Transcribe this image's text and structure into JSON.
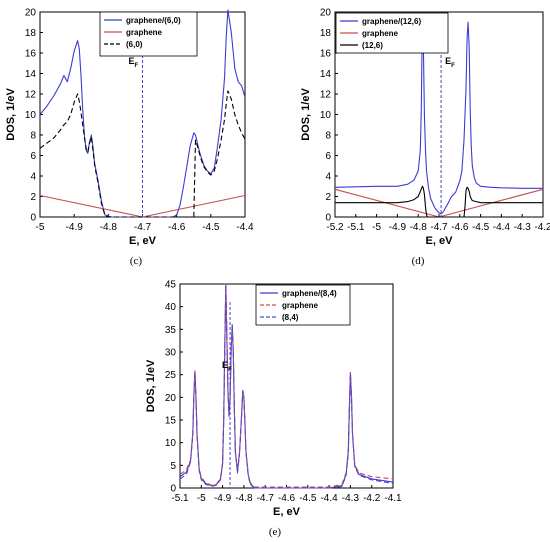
{
  "colors": {
    "composite": "#3b3bd6",
    "graphene": "#c0504d",
    "tube_black": "#000000",
    "tube_dashed_blue": "#4a4ae0",
    "fermi": "#4444dd"
  },
  "panels": [
    {
      "label": "(c)"
    },
    {
      "label": "(d)"
    },
    {
      "label": "(e)"
    }
  ],
  "chart_data": [
    {
      "type": "line",
      "panel": "(c)",
      "xlabel": "E, eV",
      "ylabel": "DOS, 1/eV",
      "xlim": [
        -5,
        -4.4
      ],
      "ylim": [
        0,
        20
      ],
      "xticks": [
        "-5",
        "-4.9",
        "-4.8",
        "-4.7",
        "-4.6",
        "-4.5",
        "-4.4"
      ],
      "yticks": [
        "0",
        "2",
        "4",
        "6",
        "8",
        "10",
        "12",
        "14",
        "16",
        "18",
        "20"
      ],
      "fermi_label": "E",
      "fermi_sub": "F",
      "fermi_x": -4.7,
      "legend": [
        "graphene/(6,0)",
        "graphene",
        "(6,0)"
      ],
      "series": [
        {
          "name": "graphene/(6,0)",
          "style": "solid",
          "color": "composite",
          "x": [
            -5.0,
            -4.98,
            -4.96,
            -4.94,
            -4.93,
            -4.92,
            -4.91,
            -4.9,
            -4.89,
            -4.885,
            -4.88,
            -4.875,
            -4.87,
            -4.865,
            -4.86,
            -4.855,
            -4.85,
            -4.845,
            -4.84,
            -4.83,
            -4.82,
            -4.81,
            -4.8,
            -4.79,
            -4.78,
            -4.7,
            -4.62,
            -4.61,
            -4.6,
            -4.59,
            -4.58,
            -4.57,
            -4.56,
            -4.55,
            -4.545,
            -4.54,
            -4.535,
            -4.53,
            -4.525,
            -4.52,
            -4.51,
            -4.5,
            -4.49,
            -4.48,
            -4.47,
            -4.46,
            -4.455,
            -4.45,
            -4.44,
            -4.43,
            -4.42,
            -4.41,
            -4.4
          ],
          "y": [
            10.0,
            10.8,
            11.8,
            13.0,
            13.8,
            13.2,
            14.5,
            16.2,
            17.2,
            16.4,
            13.8,
            10.5,
            8.0,
            6.5,
            6.2,
            7.3,
            8.0,
            6.8,
            5.2,
            3.5,
            1.5,
            0.2,
            0.1,
            0.0,
            0.0,
            0.0,
            0.0,
            0.0,
            0.2,
            1.2,
            3.0,
            5.0,
            7.0,
            8.2,
            8.0,
            7.3,
            6.6,
            6.0,
            5.5,
            5.0,
            4.5,
            4.2,
            4.8,
            7.0,
            9.5,
            13.5,
            17.5,
            20.2,
            18.0,
            14.5,
            13.2,
            12.8,
            11.7
          ]
        },
        {
          "name": "graphene",
          "style": "solid",
          "color": "graphene",
          "x": [
            -5.0,
            -4.7,
            -4.4
          ],
          "y": [
            2.1,
            0.0,
            2.1
          ]
        },
        {
          "name": "(6,0)",
          "style": "dashed",
          "color": "tube_black",
          "x": [
            -5.0,
            -4.98,
            -4.96,
            -4.94,
            -4.93,
            -4.92,
            -4.91,
            -4.9,
            -4.89,
            -4.885,
            -4.88,
            -4.875,
            -4.87,
            -4.865,
            -4.86,
            -4.855,
            -4.85,
            -4.845,
            -4.84,
            -4.83,
            -4.82,
            -4.81,
            -4.8,
            -4.79,
            -4.55,
            -4.545,
            -4.54,
            -4.535,
            -4.53,
            -4.525,
            -4.52,
            -4.51,
            -4.5,
            -4.49,
            -4.48,
            -4.47,
            -4.46,
            -4.455,
            -4.45,
            -4.44,
            -4.43,
            -4.42,
            -4.41,
            -4.4
          ],
          "y": [
            6.7,
            7.2,
            7.7,
            8.5,
            9.0,
            9.3,
            10.0,
            11.2,
            12.0,
            11.3,
            10.2,
            9.0,
            7.8,
            6.7,
            6.3,
            7.2,
            7.8,
            6.5,
            5.0,
            3.3,
            1.3,
            0.2,
            0.0,
            0.0,
            0.0,
            7.5,
            7.0,
            6.4,
            5.8,
            5.3,
            4.9,
            4.4,
            4.1,
            4.5,
            5.8,
            7.5,
            9.5,
            11.0,
            12.3,
            11.5,
            10.0,
            9.0,
            8.2,
            7.6
          ]
        }
      ]
    },
    {
      "type": "line",
      "panel": "(d)",
      "xlabel": "E, eV",
      "ylabel": "DOS, 1/eV",
      "xlim": [
        -5.2,
        -4.2
      ],
      "ylim": [
        0,
        20
      ],
      "xticks": [
        "-5.2",
        "-5.1",
        "-5",
        "-4.9",
        "-4.8",
        "-4.7",
        "-4.6",
        "-4.5",
        "-4.4",
        "-4.3",
        "-4.2"
      ],
      "yticks": [
        "0",
        "2",
        "4",
        "6",
        "8",
        "10",
        "12",
        "14",
        "16",
        "18",
        "20"
      ],
      "fermi_label": "E",
      "fermi_sub": "F",
      "fermi_x": -4.69,
      "legend": [
        "graphene/(12,6)",
        "graphene",
        "(12,6)"
      ],
      "series": [
        {
          "name": "graphene/(12,6)",
          "style": "solid",
          "color": "composite",
          "x": [
            -5.2,
            -5.0,
            -4.9,
            -4.85,
            -4.82,
            -4.8,
            -4.79,
            -4.785,
            -4.78,
            -4.775,
            -4.77,
            -4.765,
            -4.76,
            -4.75,
            -4.74,
            -4.72,
            -4.7,
            -4.69,
            -4.68,
            -4.66,
            -4.64,
            -4.62,
            -4.6,
            -4.59,
            -4.58,
            -4.57,
            -4.565,
            -4.56,
            -4.555,
            -4.55,
            -4.545,
            -4.54,
            -4.53,
            -4.52,
            -4.5,
            -4.45,
            -4.4,
            -4.3,
            -4.2
          ],
          "y": [
            2.9,
            3.0,
            3.0,
            3.2,
            3.6,
            4.5,
            6.5,
            10.5,
            19.7,
            16.5,
            10.0,
            6.5,
            4.5,
            2.8,
            1.8,
            0.9,
            0.4,
            0.3,
            0.5,
            1.2,
            2.0,
            2.4,
            3.5,
            4.5,
            7.5,
            12.5,
            17.5,
            19.0,
            16.5,
            10.5,
            7.0,
            5.0,
            3.8,
            3.3,
            3.0,
            2.9,
            2.85,
            2.8,
            2.8
          ]
        },
        {
          "name": "graphene",
          "style": "solid",
          "color": "graphene",
          "x": [
            -5.2,
            -4.7,
            -4.2
          ],
          "y": [
            2.7,
            0.0,
            2.7
          ]
        },
        {
          "name": "(12,6)",
          "style": "solid",
          "color": "tube_black",
          "x": [
            -5.2,
            -4.9,
            -4.85,
            -4.82,
            -4.8,
            -4.79,
            -4.78,
            -4.775,
            -4.77,
            -4.765,
            -4.76,
            -4.755,
            -4.75,
            -4.6,
            -4.58,
            -4.575,
            -4.57,
            -4.565,
            -4.56,
            -4.555,
            -4.55,
            -4.545,
            -4.54,
            -4.52,
            -4.5,
            -4.2
          ],
          "y": [
            1.4,
            1.4,
            1.5,
            1.7,
            2.0,
            2.5,
            3.0,
            2.8,
            2.2,
            1.0,
            0.2,
            0.0,
            0.0,
            0.0,
            0.0,
            1.0,
            2.6,
            2.9,
            2.8,
            2.5,
            2.0,
            1.8,
            1.6,
            1.5,
            1.4,
            1.4
          ]
        }
      ]
    },
    {
      "type": "line",
      "panel": "(e)",
      "xlabel": "E, eV",
      "ylabel": "DOS, 1/eV",
      "xlim": [
        -5.1,
        -4.1
      ],
      "ylim": [
        0,
        45
      ],
      "xticks": [
        "-5.1",
        "-5",
        "-4.9",
        "-4.8",
        "-4.7",
        "-4.6",
        "-4.5",
        "-4.4",
        "-4.3",
        "-4.2",
        "-4.1"
      ],
      "yticks": [
        "0",
        "5",
        "10",
        "15",
        "20",
        "25",
        "30",
        "35",
        "40",
        "45"
      ],
      "fermi_label": "E",
      "fermi_sub": "F",
      "fermi_x": -4.865,
      "legend": [
        "graphene/(8,4)",
        "graphene",
        "(8,4)"
      ],
      "series": [
        {
          "name": "graphene/(8,4)",
          "style": "solid",
          "color": "composite",
          "x": [
            -5.1,
            -5.07,
            -5.05,
            -5.04,
            -5.035,
            -5.03,
            -5.025,
            -5.02,
            -5.01,
            -5.0,
            -4.98,
            -4.95,
            -4.93,
            -4.91,
            -4.9,
            -4.895,
            -4.89,
            -4.885,
            -4.88,
            -4.875,
            -4.87,
            -4.865,
            -4.86,
            -4.855,
            -4.85,
            -4.845,
            -4.84,
            -4.83,
            -4.82,
            -4.81,
            -4.805,
            -4.8,
            -4.795,
            -4.79,
            -4.78,
            -4.77,
            -4.75,
            -4.6,
            -4.4,
            -4.34,
            -4.32,
            -4.31,
            -4.305,
            -4.3,
            -4.295,
            -4.29,
            -4.28,
            -4.26,
            -4.2,
            -4.1
          ],
          "y": [
            2.5,
            3.5,
            6.0,
            12.0,
            20.0,
            25.8,
            20.0,
            12.0,
            4.0,
            2.0,
            1.0,
            0.5,
            0.7,
            2.0,
            5.5,
            15.0,
            30.0,
            45.0,
            33.0,
            22.0,
            16.0,
            20.0,
            30.0,
            36.0,
            30.0,
            18.0,
            8.0,
            3.5,
            8.0,
            17.0,
            21.5,
            20.0,
            14.0,
            8.0,
            3.0,
            1.0,
            0.0,
            0.0,
            0.0,
            0.5,
            3.0,
            8.0,
            17.0,
            25.5,
            20.0,
            12.0,
            5.0,
            3.0,
            2.0,
            1.3
          ]
        },
        {
          "name": "graphene",
          "style": "dashed",
          "color": "graphene",
          "x": [
            -5.1,
            -5.07,
            -5.05,
            -5.04,
            -5.035,
            -5.03,
            -5.025,
            -5.02,
            -5.01,
            -5.0,
            -4.98,
            -4.95,
            -4.93,
            -4.91,
            -4.9,
            -4.895,
            -4.89,
            -4.885,
            -4.88,
            -4.875,
            -4.87,
            -4.865,
            -4.86,
            -4.855,
            -4.85,
            -4.845,
            -4.84,
            -4.83,
            -4.82,
            -4.81,
            -4.805,
            -4.8,
            -4.795,
            -4.79,
            -4.78,
            -4.77,
            -4.75,
            -4.6,
            -4.4,
            -4.34,
            -4.32,
            -4.31,
            -4.305,
            -4.3,
            -4.295,
            -4.29,
            -4.28,
            -4.26,
            -4.2,
            -4.1
          ],
          "y": [
            3.0,
            4.0,
            6.3,
            12.2,
            20.2,
            25.8,
            20.2,
            12.2,
            4.3,
            2.3,
            1.2,
            0.6,
            0.8,
            2.2,
            5.8,
            15.3,
            30.0,
            45.0,
            33.0,
            22.0,
            16.0,
            20.0,
            30.0,
            36.0,
            30.0,
            18.0,
            8.0,
            3.5,
            8.0,
            17.0,
            21.5,
            20.0,
            14.0,
            8.0,
            3.0,
            1.2,
            0.2,
            0.2,
            0.2,
            0.8,
            3.3,
            8.3,
            17.3,
            25.5,
            20.3,
            12.3,
            5.3,
            3.3,
            2.5,
            2.0
          ]
        },
        {
          "name": "(8,4)",
          "style": "dashed",
          "color": "tube_dashed_blue",
          "x": [
            -5.1,
            -5.07,
            -5.05,
            -5.04,
            -5.035,
            -5.03,
            -5.025,
            -5.02,
            -5.01,
            -5.0,
            -4.98,
            -4.95,
            -4.93,
            -4.91,
            -4.9,
            -4.895,
            -4.89,
            -4.885,
            -4.88,
            -4.875,
            -4.87,
            -4.865,
            -4.86,
            -4.855,
            -4.85,
            -4.845,
            -4.84,
            -4.83,
            -4.82,
            -4.81,
            -4.805,
            -4.8,
            -4.795,
            -4.79,
            -4.78,
            -4.77,
            -4.75,
            -4.6,
            -4.4,
            -4.34,
            -4.32,
            -4.31,
            -4.305,
            -4.3,
            -4.295,
            -4.29,
            -4.28,
            -4.26,
            -4.2,
            -4.1
          ],
          "y": [
            2.0,
            3.0,
            5.8,
            11.8,
            19.8,
            25.6,
            19.8,
            11.8,
            3.8,
            1.8,
            0.8,
            0.4,
            0.6,
            1.8,
            5.3,
            14.8,
            29.8,
            44.8,
            32.8,
            21.8,
            15.8,
            19.8,
            29.8,
            35.8,
            29.8,
            17.8,
            7.8,
            3.3,
            7.8,
            16.8,
            21.3,
            19.8,
            13.8,
            7.8,
            2.8,
            0.8,
            0.0,
            0.0,
            0.0,
            0.3,
            2.8,
            7.8,
            16.8,
            25.3,
            19.8,
            11.8,
            4.8,
            2.8,
            1.8,
            1.0
          ]
        }
      ]
    }
  ]
}
